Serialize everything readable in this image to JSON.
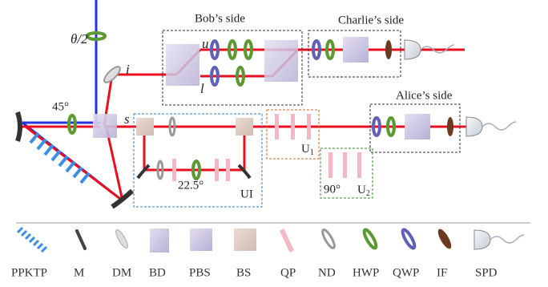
{
  "labels": {
    "theta": "θ/2",
    "i": "i",
    "angle45": "45°",
    "s": "s",
    "u": "u",
    "l": "l",
    "angle22": "22.5°",
    "angle90": "90°",
    "ui": "UI"
  },
  "boxes": {
    "bob": "Bob’s side",
    "charlie": "Charlie’s side",
    "alice": "Alice’s side"
  },
  "unitaries": [
    {
      "base": "U",
      "sub": "1"
    },
    {
      "base": "U",
      "sub": "2"
    }
  ],
  "legend": [
    "PPKTP",
    "M",
    "DM",
    "BD",
    "PBS",
    "BS",
    "QP",
    "ND",
    "HWP",
    "QWP",
    "IF",
    "SPD"
  ]
}
